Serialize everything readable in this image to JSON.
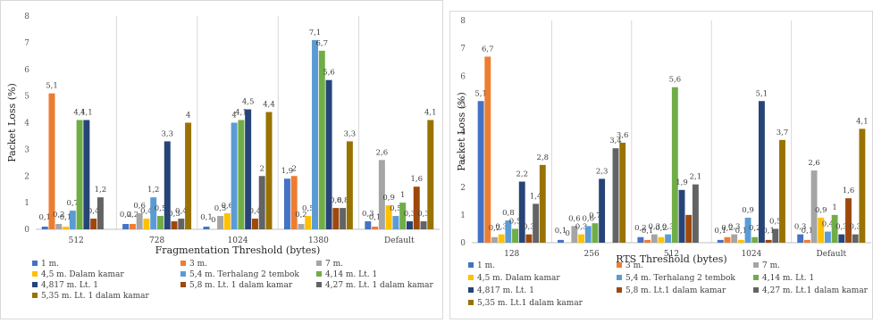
{
  "chart_data": [
    {
      "type": "bar",
      "ylabel": "Packet Loss (%)",
      "xlabel": "Fragmentation Threshold (bytes)",
      "ylim": [
        0,
        8
      ],
      "yticks": [
        "0",
        "1",
        "2",
        "3",
        "4",
        "5",
        "6",
        "7",
        "8"
      ],
      "grid": "vertical category separators",
      "legend": "bottom",
      "categories": [
        "512",
        "728",
        "1024",
        "1380",
        "Default"
      ],
      "series": [
        {
          "name": "1 m.",
          "color": "#4472c4",
          "values": [
            0.1,
            0.2,
            0.1,
            1.9,
            0.3
          ],
          "labels": [
            "0,1",
            "0,2",
            "0,1",
            "1,9",
            "0,3"
          ]
        },
        {
          "name": "3 m.",
          "color": "#ed7d31",
          "values": [
            5.1,
            0.2,
            0.0,
            2.0,
            0.1
          ],
          "labels": [
            "5,1",
            "0,2",
            "0",
            "2",
            "0,1"
          ]
        },
        {
          "name": "7 m.",
          "color": "#a5a5a5",
          "values": [
            0.2,
            0.6,
            0.5,
            0.2,
            2.6
          ],
          "labels": [
            "0,2",
            "0,6",
            "0,5",
            "0,2",
            "2,6"
          ]
        },
        {
          "name": "4,5 m. Dalam kamar",
          "color": "#ffc000",
          "values": [
            0.1,
            0.4,
            0.6,
            0.5,
            0.9
          ],
          "labels": [
            "0,1",
            "0,4",
            "0,6",
            "0,5",
            "0,9"
          ]
        },
        {
          "name": "5,4 m. Terhalang 2 tembok",
          "color": "#5b9bd5",
          "values": [
            0.7,
            1.2,
            4.0,
            7.1,
            0.5
          ],
          "labels": [
            "0,7",
            "1,2",
            "4",
            "7,1",
            "0,5"
          ]
        },
        {
          "name": "4,14 m. Lt. 1",
          "color": "#70ad47",
          "values": [
            4.1,
            0.5,
            4.1,
            6.7,
            1.0
          ],
          "labels": [
            "4,1",
            "0,5",
            "4,1",
            "6,7",
            "1"
          ]
        },
        {
          "name": "4,817 m. Lt. 1",
          "color": "#264478",
          "values": [
            4.1,
            3.3,
            4.5,
            5.6,
            0.3
          ],
          "labels": [
            "4,1",
            "3,3",
            "4,5",
            "5,6",
            "0,3"
          ]
        },
        {
          "name": "5,8 m. Lt. 1 dalam kamar",
          "color": "#9e480e",
          "values": [
            0.4,
            0.3,
            0.4,
            0.8,
            1.6
          ],
          "labels": [
            "0,4",
            "0,3",
            "0,4",
            "0,8",
            "1,6"
          ]
        },
        {
          "name": "4,27 m. Lt. 1 dalam kamar",
          "color": "#636363",
          "values": [
            1.2,
            0.4,
            2.0,
            0.8,
            0.3
          ],
          "labels": [
            "1,2",
            "0,4",
            "2",
            "0,8",
            "0,3"
          ]
        },
        {
          "name": "5,35 m. Lt. 1 dalam kamar",
          "color": "#997300",
          "values": [
            null,
            4.0,
            4.4,
            3.3,
            4.1
          ],
          "labels": [
            "",
            "4",
            "4,4",
            "3,3",
            "4,1"
          ]
        }
      ]
    },
    {
      "type": "bar",
      "ylabel": "Packet Loss (%)",
      "xlabel": "RTS Threshold (bytes)",
      "ylim": [
        0,
        8
      ],
      "yticks": [
        "0",
        "1",
        "2",
        "3",
        "4",
        "5",
        "6",
        "7",
        "8"
      ],
      "grid": "vertical category separators",
      "legend": "bottom",
      "categories": [
        "128",
        "256",
        "512",
        "1024",
        "Default"
      ],
      "series": [
        {
          "name": "1 m.",
          "color": "#4472c4",
          "values": [
            5.1,
            0.1,
            0.2,
            0.1,
            0.3
          ],
          "labels": [
            "5,1",
            "0,1",
            "0,2",
            "0,1",
            "0,3"
          ]
        },
        {
          "name": "3 m.",
          "color": "#ed7d31",
          "values": [
            6.7,
            0.0,
            0.1,
            0.2,
            0.1
          ],
          "labels": [
            "6,7",
            "0",
            "0,1",
            "0,2",
            "0,1"
          ]
        },
        {
          "name": "7 m.",
          "color": "#a5a5a5",
          "values": [
            0.2,
            0.6,
            0.3,
            0.3,
            2.6
          ],
          "labels": [
            "0,2",
            "0,6",
            "0,3",
            "0,3",
            "2,6"
          ]
        },
        {
          "name": "4,5 m. Dalam kamar",
          "color": "#ffc000",
          "values": [
            0.3,
            0.3,
            0.2,
            0.1,
            0.9
          ],
          "labels": [
            "0,3",
            "0,3",
            "0,2",
            "0,1",
            "0,9"
          ]
        },
        {
          "name": "5,4 m. Terhalang 2 tembok",
          "color": "#5b9bd5",
          "values": [
            0.8,
            0.6,
            0.3,
            0.9,
            0.4
          ],
          "labels": [
            "0,8",
            "0,6",
            "0,3",
            "0,9",
            "0,4"
          ]
        },
        {
          "name": "4,14 m. Lt. 1",
          "color": "#70ad47",
          "values": [
            0.5,
            0.7,
            5.6,
            0.2,
            1.0
          ],
          "labels": [
            "0,5",
            "0,7",
            "5,6",
            "0,2",
            "1"
          ]
        },
        {
          "name": "4,817 m. Lt. 1",
          "color": "#264478",
          "values": [
            2.2,
            2.3,
            1.9,
            5.1,
            0.3
          ],
          "labels": [
            "2,2",
            "2,3",
            "1,9",
            "5,1",
            "0,3"
          ]
        },
        {
          "name": "5,8 m. Lt.1 dalam kamar",
          "color": "#9e480e",
          "values": [
            0.3,
            null,
            1.0,
            0.1,
            1.6
          ],
          "labels": [
            "0,3",
            "",
            "",
            "0,1",
            "1,6"
          ]
        },
        {
          "name": "4,27 m. Lt.1 dalam kamar",
          "color": "#636363",
          "values": [
            1.4,
            3.4,
            2.1,
            0.5,
            0.3
          ],
          "labels": [
            "1,4",
            "3,4",
            "2,1",
            "0,5",
            "0,3"
          ]
        },
        {
          "name": "5,35 m. Lt.1 dalam kamar",
          "color": "#997300",
          "values": [
            2.8,
            3.6,
            null,
            3.7,
            4.1
          ],
          "labels": [
            "2,8",
            "3,6",
            "",
            "3,7",
            "4,1"
          ]
        }
      ]
    }
  ]
}
